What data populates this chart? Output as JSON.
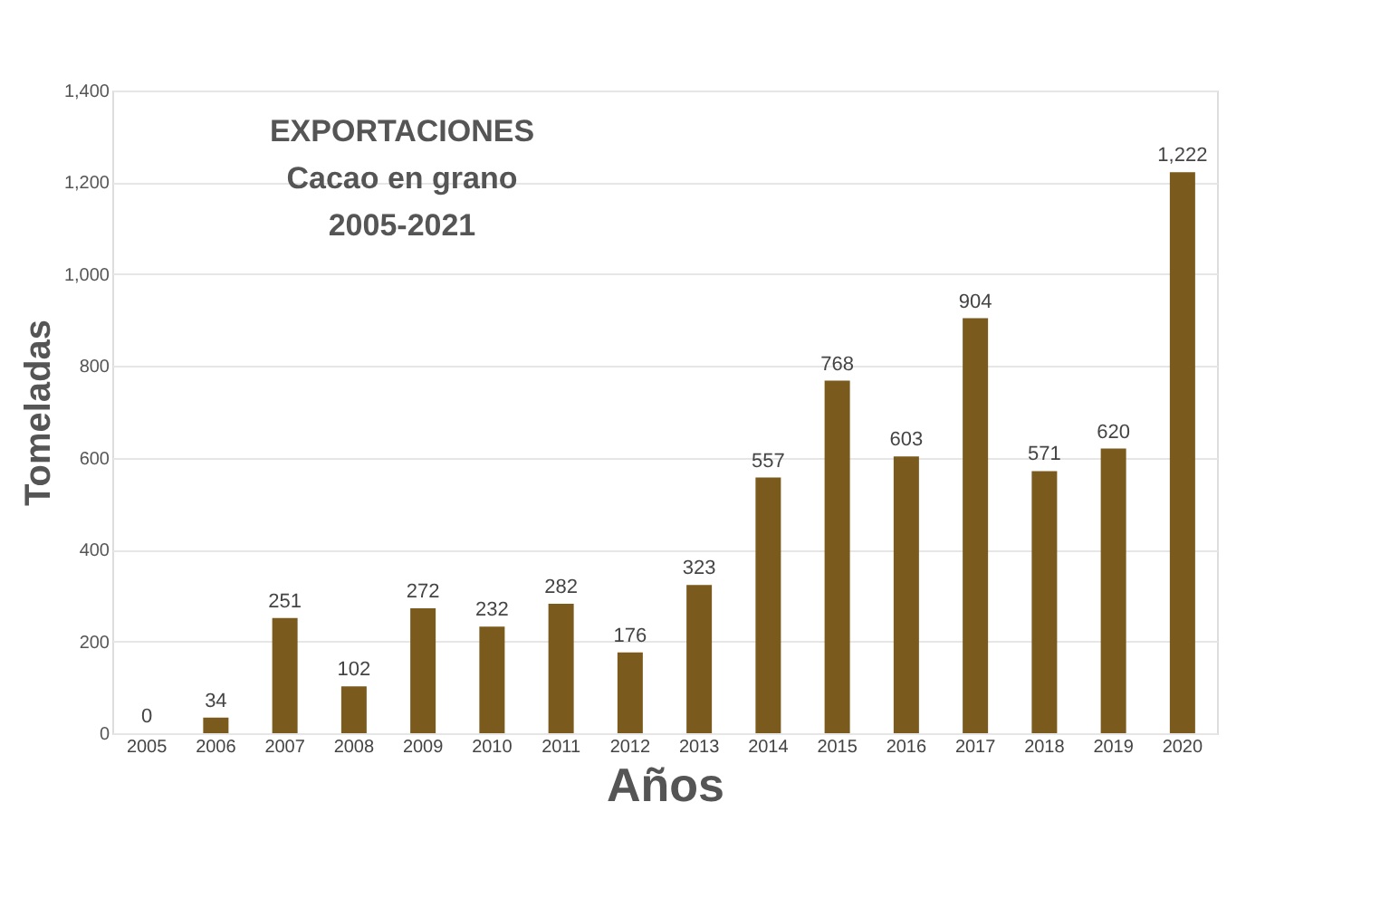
{
  "chart_data": {
    "type": "bar",
    "title": "EXPORTACIONES\nCacao en grano\n2005-2021",
    "xlabel": "Años",
    "ylabel": "Tomeladas",
    "categories": [
      "2005",
      "2006",
      "2007",
      "2008",
      "2009",
      "2010",
      "2011",
      "2012",
      "2013",
      "2014",
      "2015",
      "2016",
      "2017",
      "2018",
      "2019",
      "2020"
    ],
    "values": [
      0,
      34,
      251,
      102,
      272,
      232,
      282,
      176,
      323,
      557,
      768,
      603,
      904,
      571,
      620,
      1222
    ],
    "value_labels": [
      "0",
      "34",
      "251",
      "102",
      "272",
      "232",
      "282",
      "176",
      "323",
      "557",
      "768",
      "603",
      "904",
      "571",
      "620",
      "1,222"
    ],
    "color": "#7b5a1e",
    "ylim": [
      0,
      1400
    ],
    "yticks": [
      0,
      200,
      400,
      600,
      800,
      {
        "value": 1000,
        "label": "1,000"
      },
      {
        "value": 1200,
        "label": "1,200"
      },
      {
        "value": 1400,
        "label": "1,400"
      }
    ],
    "grid": "y"
  }
}
